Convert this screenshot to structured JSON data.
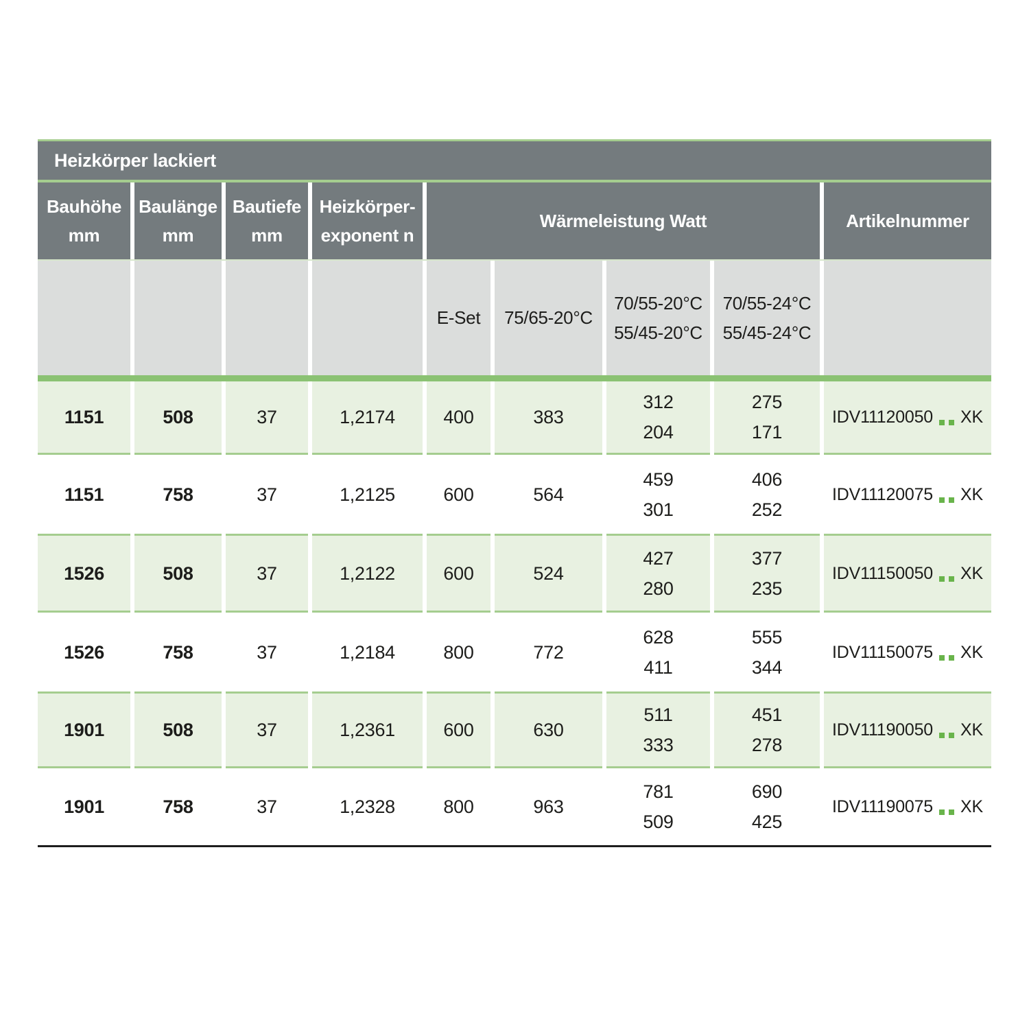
{
  "table": {
    "title": "Heizkörper lackiert",
    "columns": {
      "bauhoehe": {
        "line1": "Bauhöhe",
        "line2": "mm"
      },
      "baulaenge": {
        "line1": "Baulänge",
        "line2": "mm"
      },
      "bautiefe": {
        "line1": "Bautiefe",
        "line2": "mm"
      },
      "exponent": {
        "line1": "Heizkörper-",
        "line2": "exponent n"
      },
      "waermeleistung": "Wärmeleistung Watt",
      "artikelnummer": "Artikelnummer"
    },
    "subcolumns": {
      "eset": "E-Set",
      "c7565": "75/65-20°C",
      "c7055_20": [
        "70/55-20°C",
        "55/45-20°C"
      ],
      "c7055_24": [
        "70/55-24°C",
        "55/45-24°C"
      ]
    },
    "rows": [
      {
        "bauhoehe": "1151",
        "baulaenge": "508",
        "bautiefe": "37",
        "exponent": "1,2174",
        "eset": "400",
        "w7565": "383",
        "w7055_20": [
          "312",
          "204"
        ],
        "w7055_24": [
          "275",
          "171"
        ],
        "artikel": {
          "prefix": "IDV11120050",
          "suffix": "XK",
          "full": "IDV11120050..XK"
        }
      },
      {
        "bauhoehe": "1151",
        "baulaenge": "758",
        "bautiefe": "37",
        "exponent": "1,2125",
        "eset": "600",
        "w7565": "564",
        "w7055_20": [
          "459",
          "301"
        ],
        "w7055_24": [
          "406",
          "252"
        ],
        "artikel": {
          "prefix": "IDV11120075",
          "suffix": "XK",
          "full": "IDV11120075..XK"
        }
      },
      {
        "bauhoehe": "1526",
        "baulaenge": "508",
        "bautiefe": "37",
        "exponent": "1,2122",
        "eset": "600",
        "w7565": "524",
        "w7055_20": [
          "427",
          "280"
        ],
        "w7055_24": [
          "377",
          "235"
        ],
        "artikel": {
          "prefix": "IDV11150050",
          "suffix": "XK",
          "full": "IDV11150050..XK"
        }
      },
      {
        "bauhoehe": "1526",
        "baulaenge": "758",
        "bautiefe": "37",
        "exponent": "1,2184",
        "eset": "800",
        "w7565": "772",
        "w7055_20": [
          "628",
          "411"
        ],
        "w7055_24": [
          "555",
          "344"
        ],
        "artikel": {
          "prefix": "IDV11150075",
          "suffix": "XK",
          "full": "IDV11150075..XK"
        }
      },
      {
        "bauhoehe": "1901",
        "baulaenge": "508",
        "bautiefe": "37",
        "exponent": "1,2361",
        "eset": "600",
        "w7565": "630",
        "w7055_20": [
          "511",
          "333"
        ],
        "w7055_24": [
          "451",
          "278"
        ],
        "artikel": {
          "prefix": "IDV11190050",
          "suffix": "XK",
          "full": "IDV11190050..XK"
        }
      },
      {
        "bauhoehe": "1901",
        "baulaenge": "758",
        "bautiefe": "37",
        "exponent": "1,2328",
        "eset": "800",
        "w7565": "963",
        "w7055_20": [
          "781",
          "509"
        ],
        "w7055_24": [
          "690",
          "425"
        ],
        "artikel": {
          "prefix": "IDV11190075",
          "suffix": "XK",
          "full": "IDV11190075..XK"
        }
      }
    ]
  },
  "colors": {
    "header_gray": "#747b7e",
    "subheader_gray": "#dbdddc",
    "row_green": "#e8f1e1",
    "border_green": "#a5cd8f",
    "band_green": "#8bc273",
    "dot_green": "#69b44b",
    "bottom_rule": "#1e1e1e",
    "text": "#1d1d1b",
    "header_text": "#ffffff"
  }
}
